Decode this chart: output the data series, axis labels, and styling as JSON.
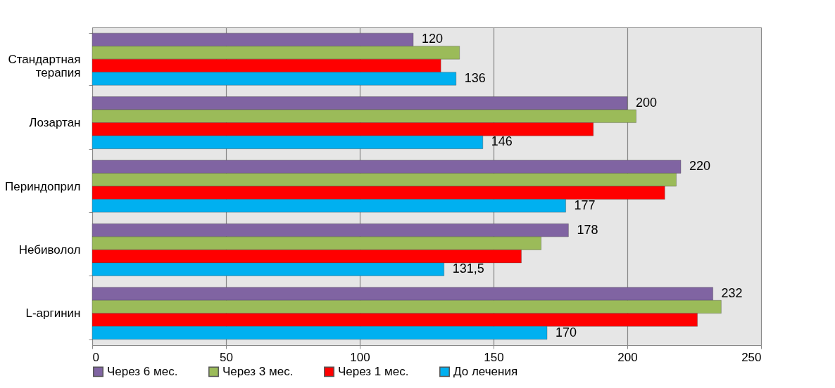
{
  "chart_data": {
    "type": "bar",
    "orientation": "horizontal",
    "categories": [
      "Стандартная терапия",
      "Лозартан",
      "Периндоприл",
      "Небиволол",
      "L-аргинин"
    ],
    "series": [
      {
        "name": "Через 6 мес.",
        "color": "#8064a2",
        "values": [
          120,
          200,
          220,
          178,
          232
        ],
        "value_labels": [
          "120",
          "200",
          "220",
          "178",
          "232"
        ]
      },
      {
        "name": "Через 3 мес.",
        "color": "#9bbb59",
        "values": [
          137.3,
          203.3,
          218.3,
          167.8,
          235.1
        ]
      },
      {
        "name": "Через 1 мес.",
        "color": "#ff0000",
        "values": [
          130.3,
          187.3,
          214,
          160.4,
          226.2
        ]
      },
      {
        "name": "До лечения",
        "color": "#00b0f0",
        "values": [
          136,
          146,
          177,
          131.5,
          170
        ],
        "value_labels": [
          "136",
          "146",
          "177",
          "131,5",
          "170"
        ]
      }
    ],
    "xlim": [
      0,
      250
    ],
    "xticks": [
      0,
      50,
      100,
      150,
      200,
      250
    ],
    "grid": "x",
    "legend": "bottom"
  }
}
